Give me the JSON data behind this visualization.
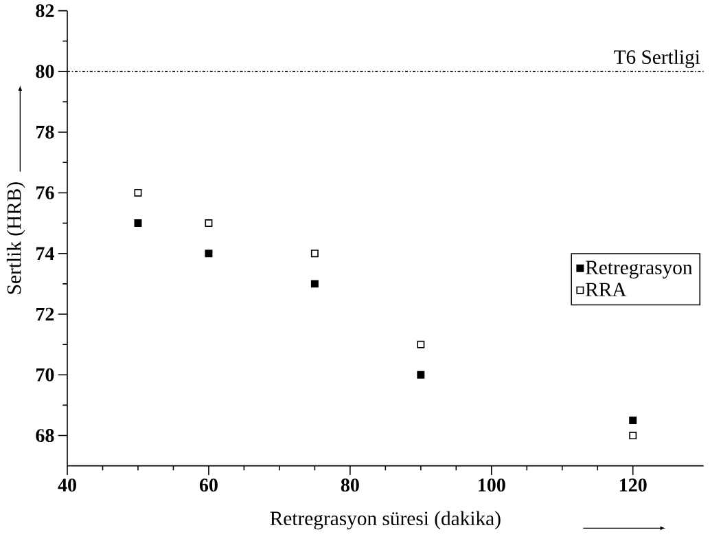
{
  "chart_data": {
    "type": "scatter",
    "xlabel": "Retregrasyon süresi (dakika)",
    "ylabel": "Sertlik (HRB)",
    "xlim": [
      40,
      130
    ],
    "ylim": [
      67,
      82
    ],
    "xticks": [
      40,
      60,
      80,
      100,
      120
    ],
    "yticks": [
      68,
      70,
      72,
      74,
      76,
      78,
      80,
      82
    ],
    "marker": "square",
    "legend": "right",
    "grid": false,
    "series": [
      {
        "name": "Retregrasyon",
        "color": "#000000",
        "x": [
          50,
          60,
          75,
          90,
          120
        ],
        "values": [
          75,
          74,
          73,
          70,
          68.5
        ]
      },
      {
        "name": "RRA",
        "color": "#000000",
        "x": [
          50,
          60,
          75,
          90,
          120
        ],
        "values": [
          76,
          75,
          74,
          71,
          68
        ]
      }
    ],
    "ref_lines": [
      {
        "axis": "y",
        "value": 80,
        "label": "T6 Sertligi",
        "line_style": "dashdotted"
      }
    ]
  }
}
